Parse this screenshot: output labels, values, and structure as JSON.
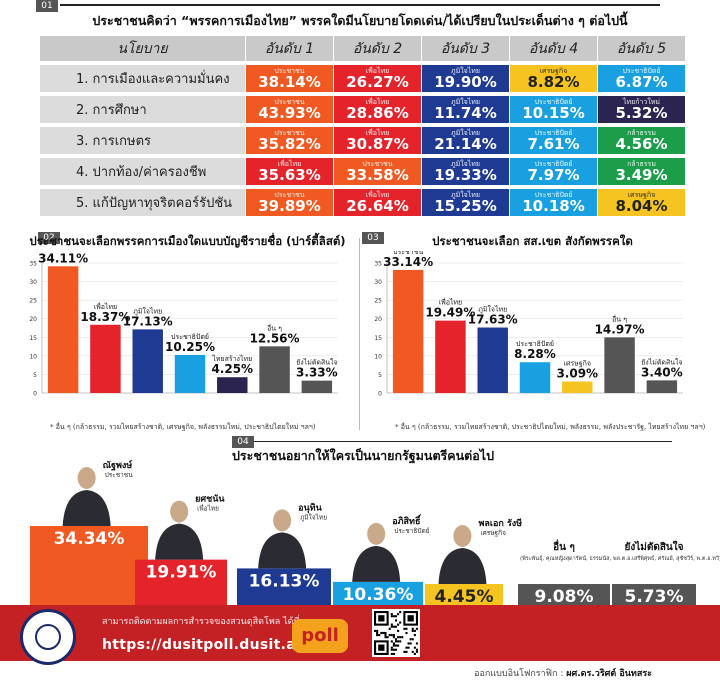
{
  "section1": {
    "num": "01",
    "title": "ประชาชนคิดว่า “พรรคการเมืองไทย” พรรคใดมีนโยบายโดดเด่น/ได้เปรียบในประเด็นต่าง ๆ ต่อไปนี้",
    "headers": [
      "นโยบาย",
      "อันดับ 1",
      "อันดับ 2",
      "อันดับ 3",
      "อันดับ 4",
      "อันดับ 5"
    ],
    "rows": [
      {
        "policy": "1. การเมืองและความมั่นคง",
        "cells": [
          {
            "party": "ประชาชน",
            "value": "38.14%",
            "color": "#f05a22"
          },
          {
            "party": "เพื่อไทย",
            "value": "26.27%",
            "color": "#e4232b"
          },
          {
            "party": "ภูมิใจไทย",
            "value": "19.90%",
            "color": "#1f3a93"
          },
          {
            "party": "เศรษฐกิจ",
            "value": "8.82%",
            "color": "#f6c421"
          },
          {
            "party": "ประชาธิปัตย์",
            "value": "6.87%",
            "color": "#18a0e0"
          }
        ]
      },
      {
        "policy": "2. การศึกษา",
        "cells": [
          {
            "party": "ประชาชน",
            "value": "43.93%",
            "color": "#f05a22"
          },
          {
            "party": "เพื่อไทย",
            "value": "28.86%",
            "color": "#e4232b"
          },
          {
            "party": "ภูมิใจไทย",
            "value": "11.74%",
            "color": "#1f3a93"
          },
          {
            "party": "ประชาธิปัตย์",
            "value": "10.15%",
            "color": "#18a0e0"
          },
          {
            "party": "ไทยก้าวใหม่",
            "value": "5.32%",
            "color": "#2b2350"
          }
        ]
      },
      {
        "policy": "3. การเกษตร",
        "cells": [
          {
            "party": "ประชาชน",
            "value": "35.82%",
            "color": "#f05a22"
          },
          {
            "party": "เพื่อไทย",
            "value": "30.87%",
            "color": "#e4232b"
          },
          {
            "party": "ภูมิใจไทย",
            "value": "21.14%",
            "color": "#1f3a93"
          },
          {
            "party": "ประชาธิปัตย์",
            "value": "7.61%",
            "color": "#18a0e0"
          },
          {
            "party": "กล้าธรรม",
            "value": "4.56%",
            "color": "#1b9d4a"
          }
        ]
      },
      {
        "policy": "4. ปากท้อง/ค่าครองชีพ",
        "cells": [
          {
            "party": "เพื่อไทย",
            "value": "35.63%",
            "color": "#e4232b"
          },
          {
            "party": "ประชาชน",
            "value": "33.58%",
            "color": "#f05a22"
          },
          {
            "party": "ภูมิใจไทย",
            "value": "19.33%",
            "color": "#1f3a93"
          },
          {
            "party": "ประชาธิปัตย์",
            "value": "7.97%",
            "color": "#18a0e0"
          },
          {
            "party": "กล้าธรรม",
            "value": "3.49%",
            "color": "#1b9d4a"
          }
        ]
      },
      {
        "policy": "5. แก้ปัญหาทุจริตคอร์รัปชัน",
        "cells": [
          {
            "party": "ประชาชน",
            "value": "39.89%",
            "color": "#f05a22"
          },
          {
            "party": "เพื่อไทย",
            "value": "26.64%",
            "color": "#e4232b"
          },
          {
            "party": "ภูมิใจไทย",
            "value": "15.25%",
            "color": "#1f3a93"
          },
          {
            "party": "ประชาธิปัตย์",
            "value": "10.18%",
            "color": "#18a0e0"
          },
          {
            "party": "เศรษฐกิจ",
            "value": "8.04%",
            "color": "#f6c421"
          }
        ]
      }
    ]
  },
  "section2": {
    "num": "02",
    "footnote": "* อื่น ๆ (กล้าธรรม, รวมไทยสร้างชาติ, เศรษฐกิจ, พลังธรรมใหม่, ประชาธิปไตยใหม่ ฯลฯ)"
  },
  "section3": {
    "num": "03",
    "footnote": "* อื่น ๆ (กล้าธรรม, รวมไทยสร้างชาติ, ประชาธิปไตยใหม่, พลังธรรม, พลังประชารัฐ, ไทยสร้างไทย ฯลฯ)"
  },
  "section4": {
    "num": "04"
  },
  "chart_data": [
    {
      "type": "bar",
      "title": "ประชาชนจะเลือกพรรคการเมืองใดแบบบัญชีรายชื่อ (ปาร์ตี้ลิสต์)",
      "categories": [
        "ประชาชน",
        "เพื่อไทย",
        "ภูมิใจไทย",
        "ประชาธิปัตย์",
        "ไทยสร้างไทย",
        "อื่น ๆ",
        "ยังไม่ตัดสินใจ"
      ],
      "values": [
        34.11,
        18.37,
        17.13,
        10.25,
        4.25,
        12.56,
        3.33
      ],
      "labels": [
        "34.11%",
        "18.37%",
        "17.13%",
        "10.25%",
        "4.25%",
        "12.56%",
        "3.33%"
      ],
      "colors": [
        "#f05a22",
        "#e4232b",
        "#1f3a93",
        "#18a0e0",
        "#2b2350",
        "#555555",
        "#555555"
      ],
      "yticks": [
        0,
        5,
        10,
        15,
        20,
        25,
        30,
        35
      ],
      "ylim": [
        0,
        35
      ],
      "grid": true
    },
    {
      "type": "bar",
      "title": "ประชาชนจะเลือก สส.เขต สังกัดพรรคใด",
      "categories": [
        "ประชาชน",
        "เพื่อไทย",
        "ภูมิใจไทย",
        "ประชาธิปัตย์",
        "เศรษฐกิจ",
        "อื่น ๆ",
        "ยังไม่ตัดสินใจ"
      ],
      "values": [
        33.14,
        19.49,
        17.63,
        8.28,
        3.09,
        14.97,
        3.4
      ],
      "labels": [
        "33.14%",
        "19.49%",
        "17.63%",
        "8.28%",
        "3.09%",
        "14.97%",
        "3.40%"
      ],
      "colors": [
        "#f05a22",
        "#e4232b",
        "#1f3a93",
        "#18a0e0",
        "#f6c421",
        "#555555",
        "#555555"
      ],
      "yticks": [
        0,
        5,
        10,
        15,
        20,
        25,
        30,
        35
      ],
      "ylim": [
        0,
        35
      ],
      "grid": true
    },
    {
      "type": "bar",
      "title": "ประชาชนอยากให้ใครเป็นนายกรัฐมนตรีคนต่อไป",
      "categories": [
        "ณัฐพงษ์",
        "ยศชนัน",
        "อนุทิน",
        "อภิสิทธิ์",
        "พลเอก รังษี",
        "อื่น ๆ",
        "ยังไม่ตัดสินใจ"
      ],
      "parties": [
        "ประชาชน",
        "เพื่อไทย",
        "ภูมิใจไทย",
        "ประชาธิปัตย์",
        "เศรษฐกิจ",
        "(พีระพันธุ์, คุณหญิงสุดารัตน์, ธรรมนัส, พล.ต.อ.เสรีพิศุทธ์, ศรัณย์, สุชัชวีร์, พ.ต.อ.ทวี)",
        ""
      ],
      "values": [
        34.34,
        19.91,
        16.13,
        10.36,
        4.45,
        9.08,
        5.73
      ],
      "labels": [
        "34.34%",
        "19.91%",
        "16.13%",
        "10.36%",
        "4.45%",
        "9.08%",
        "5.73%"
      ],
      "colors": [
        "#f05a22",
        "#e4232b",
        "#1f3a93",
        "#18a0e0",
        "#f6c421",
        "#555555",
        "#555555"
      ],
      "grid": false
    }
  ],
  "footer": {
    "note": "สามารถติดตามผลการสำรวจของสวนดุสิตโพล ได้ที่",
    "url": "https://dusitpoll.dusit.ac.th",
    "poll_logo": "poll",
    "credit_label": "ออกแบบอินโฟกราฟิก :",
    "credit_name": "ผศ.ดร.วริศต์ อินทสระ"
  }
}
